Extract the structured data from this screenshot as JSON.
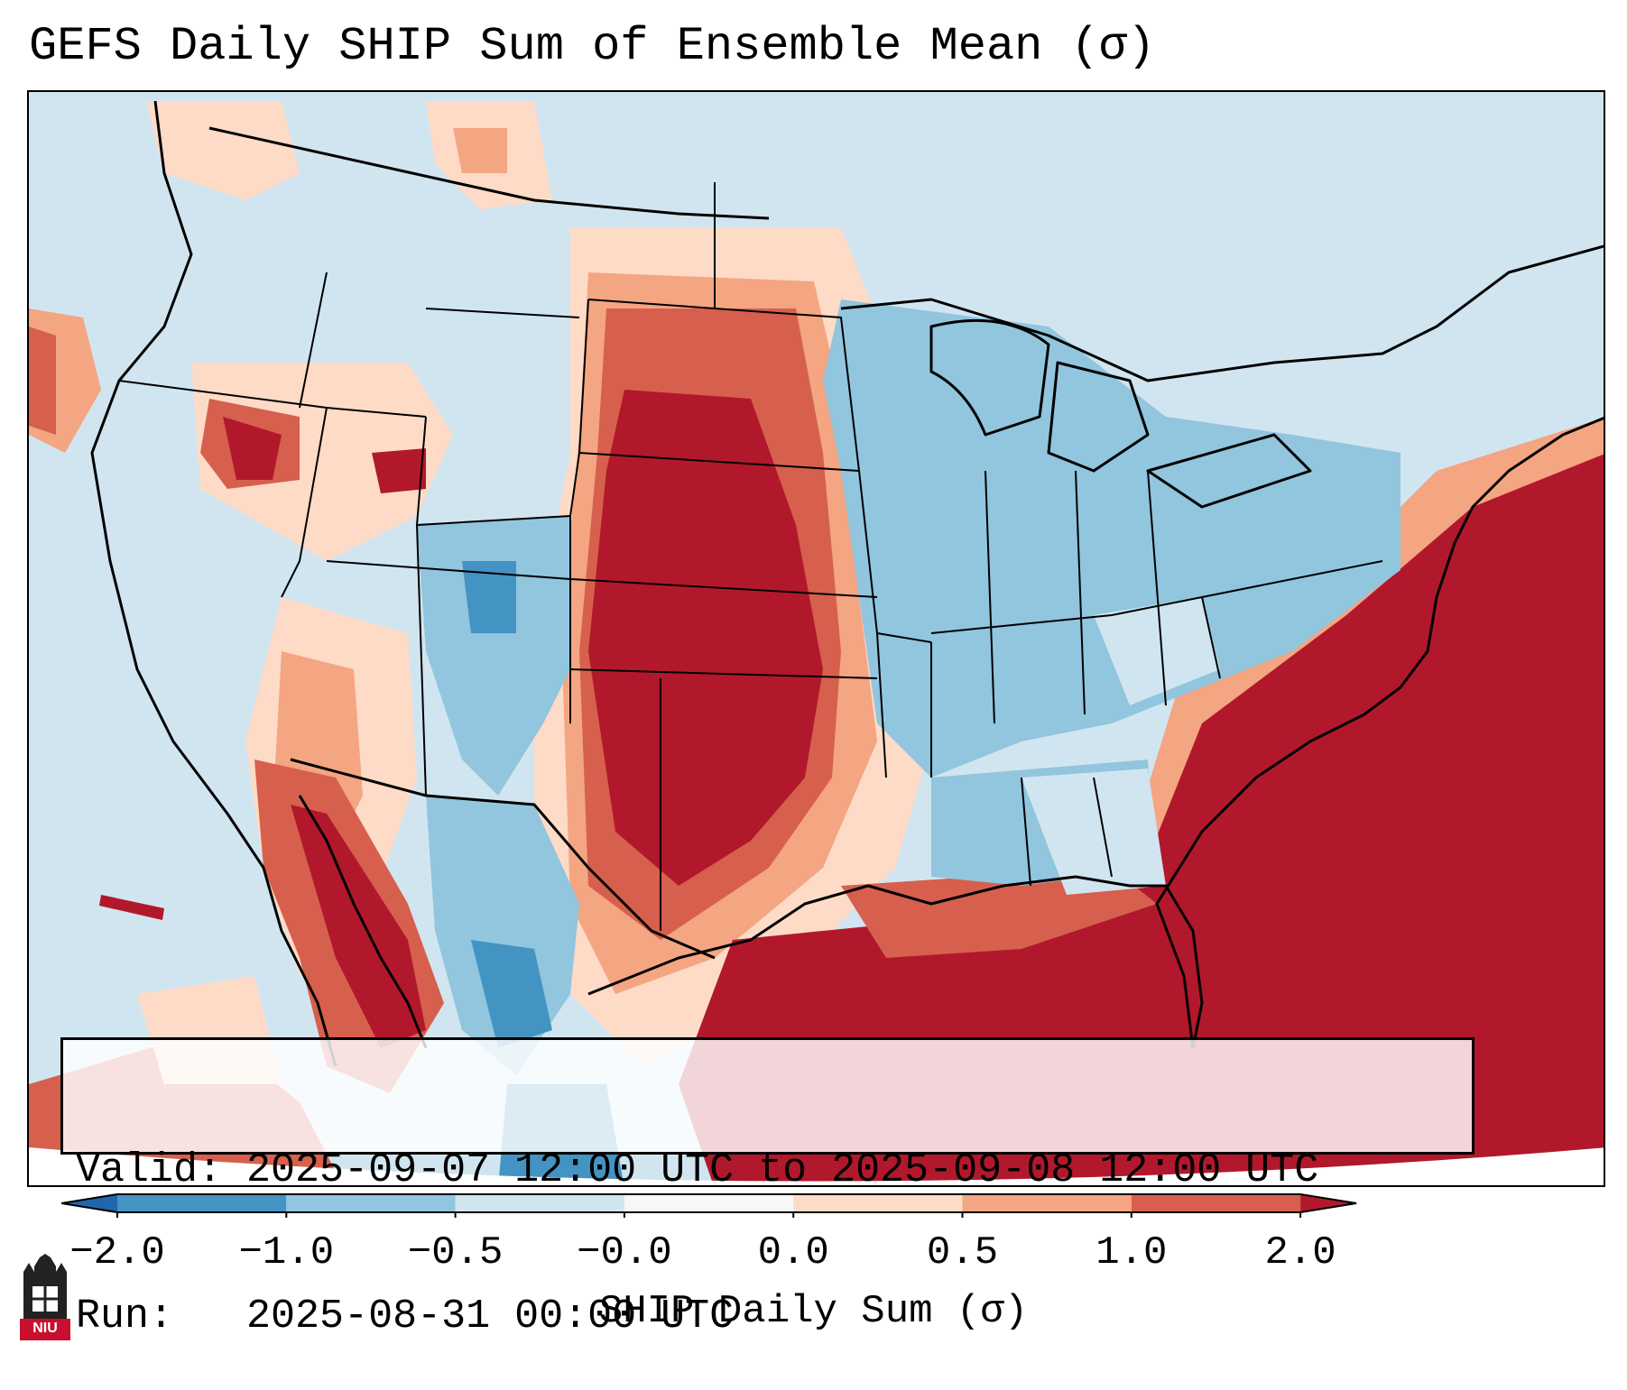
{
  "title": "GEFS Daily SHIP Sum of Ensemble Mean (σ)",
  "info": {
    "valid_label": "Valid:",
    "valid_value": "2025-09-07 12:00 UTC to 2025-09-08 12:00 UTC",
    "run_label": "Run:",
    "run_value": "2025-08-31 00:00 UTC"
  },
  "colorbar": {
    "label": "SHIP Daily Sum (σ)",
    "ticks": [
      "−2.0",
      "−1.0",
      "−0.5",
      "−0.0",
      "0.0",
      "0.5",
      "1.0",
      "2.0"
    ],
    "bins": [
      {
        "range": "< -2.0",
        "color": "#2166ac"
      },
      {
        "range": "-2.0 to -1.0",
        "color": "#4393c3"
      },
      {
        "range": "-1.0 to -0.5",
        "color": "#92c5de"
      },
      {
        "range": "-0.5 to -0.0",
        "color": "#d1e5f0"
      },
      {
        "range": "-0.0 to 0.0",
        "color": "#f7f7f7"
      },
      {
        "range": "0.0 to 0.5",
        "color": "#fddbc7"
      },
      {
        "range": "0.5 to 1.0",
        "color": "#f4a582"
      },
      {
        "range": "1.0 to 2.0",
        "color": "#d6604d"
      },
      {
        "range": "> 2.0",
        "color": "#b2182b"
      }
    ]
  },
  "logo": {
    "text": "NIU",
    "icon": "niu-tower-logo-icon",
    "color": "#c8102e"
  }
}
